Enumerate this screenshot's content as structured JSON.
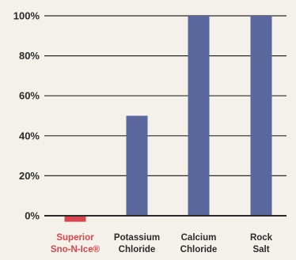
{
  "chart_data": {
    "type": "bar",
    "categories": [
      [
        "Superior",
        "Sno-N-Ice®"
      ],
      [
        "Potassium",
        "Chloride"
      ],
      [
        "Calcium",
        "Chloride"
      ],
      [
        "Rock",
        "Salt"
      ]
    ],
    "values": [
      -3,
      50,
      100,
      100
    ],
    "yticks": [
      "0%",
      "20%",
      "40%",
      "60%",
      "80%",
      "100%"
    ],
    "ylim": [
      -5,
      100
    ],
    "grid": true,
    "colors": {
      "highlight_bar": "#d8454a",
      "bar": "#5a689e",
      "highlight_label": "#d8454a",
      "label": "#2b2b2b",
      "grid": "#2b2b2b"
    }
  }
}
